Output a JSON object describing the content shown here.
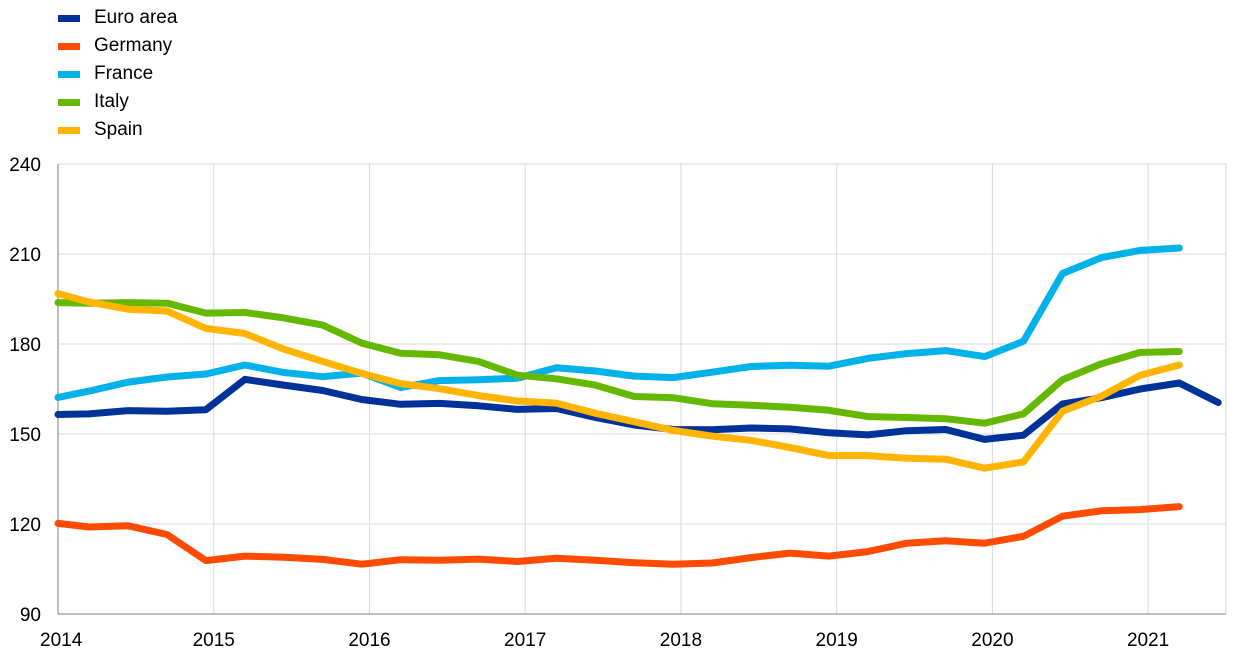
{
  "chart_data": {
    "type": "line",
    "title": "",
    "xlabel": "",
    "ylabel": "",
    "ylim": [
      90,
      240
    ],
    "yticks": [
      90,
      120,
      150,
      180,
      210,
      240
    ],
    "xlim": [
      2014,
      2021.5
    ],
    "xticks": [
      2014,
      2015,
      2016,
      2017,
      2018,
      2019,
      2020,
      2021
    ],
    "xtick_labels": [
      "2014",
      "2015",
      "2016",
      "2017",
      "2018",
      "2019",
      "2020",
      "2021"
    ],
    "legend_position": "top-left",
    "grid": "vertical",
    "series": [
      {
        "name": "Euro area",
        "color": "#003299",
        "x": [
          2014.0,
          2014.2,
          2014.45,
          2014.7,
          2014.95,
          2015.2,
          2015.45,
          2015.7,
          2015.95,
          2016.2,
          2016.45,
          2016.7,
          2016.95,
          2017.2,
          2017.45,
          2017.7,
          2017.95,
          2018.2,
          2018.45,
          2018.7,
          2018.95,
          2019.2,
          2019.45,
          2019.7,
          2019.95,
          2020.2,
          2020.45,
          2020.7,
          2020.95,
          2021.2,
          2021.45
        ],
        "values": [
          156.5,
          156.7,
          157.8,
          157.6,
          158.1,
          168.2,
          166.3,
          164.5,
          161.5,
          159.9,
          160.2,
          159.4,
          158.2,
          158.5,
          155.5,
          153.0,
          151.5,
          151.4,
          152.0,
          151.7,
          150.4,
          149.7,
          151.1,
          151.5,
          148.2,
          149.6,
          160.0,
          162.1,
          165.0,
          167.0,
          160.5
        ]
      },
      {
        "name": "Germany",
        "color": "#ff4b00",
        "x": [
          2014.0,
          2014.2,
          2014.45,
          2014.7,
          2014.95,
          2015.2,
          2015.45,
          2015.7,
          2015.95,
          2016.2,
          2016.45,
          2016.7,
          2016.95,
          2017.2,
          2017.45,
          2017.7,
          2017.95,
          2018.2,
          2018.45,
          2018.7,
          2018.95,
          2019.2,
          2019.45,
          2019.7,
          2019.95,
          2020.2,
          2020.45,
          2020.7,
          2020.95,
          2021.2
        ],
        "values": [
          120.2,
          119.0,
          119.4,
          116.5,
          107.8,
          109.3,
          108.9,
          108.2,
          106.6,
          108.1,
          107.9,
          108.3,
          107.5,
          108.6,
          107.9,
          107.1,
          106.6,
          107.0,
          108.8,
          110.3,
          109.3,
          110.8,
          113.6,
          114.4,
          113.6,
          115.9,
          122.6,
          124.4,
          124.8,
          125.8
        ]
      },
      {
        "name": "France",
        "color": "#00b1ea",
        "x": [
          2014.0,
          2014.2,
          2014.45,
          2014.7,
          2014.95,
          2015.2,
          2015.45,
          2015.7,
          2015.95,
          2016.2,
          2016.45,
          2016.7,
          2016.95,
          2017.2,
          2017.45,
          2017.7,
          2017.95,
          2018.2,
          2018.45,
          2018.7,
          2018.95,
          2019.2,
          2019.45,
          2019.7,
          2019.95,
          2020.2,
          2020.45,
          2020.7,
          2020.95,
          2021.2
        ],
        "values": [
          162.2,
          164.3,
          167.3,
          169.0,
          170.0,
          173.0,
          170.5,
          169.1,
          170.3,
          165.5,
          167.8,
          168.1,
          168.6,
          172.1,
          171.0,
          169.3,
          168.8,
          170.6,
          172.5,
          172.9,
          172.6,
          175.2,
          176.8,
          177.8,
          175.8,
          180.9,
          203.5,
          208.8,
          211.2,
          212.0
        ]
      },
      {
        "name": "Italy",
        "color": "#65b800",
        "x": [
          2014.0,
          2014.2,
          2014.45,
          2014.7,
          2014.95,
          2015.2,
          2015.45,
          2015.7,
          2015.95,
          2016.2,
          2016.45,
          2016.7,
          2016.95,
          2017.2,
          2017.45,
          2017.7,
          2017.95,
          2018.2,
          2018.45,
          2018.7,
          2018.95,
          2019.2,
          2019.45,
          2019.7,
          2019.95,
          2020.2,
          2020.45,
          2020.7,
          2020.95,
          2021.2
        ],
        "values": [
          193.8,
          193.6,
          193.8,
          193.6,
          190.3,
          190.5,
          188.7,
          186.3,
          180.3,
          176.9,
          176.4,
          174.2,
          169.6,
          168.4,
          166.3,
          162.5,
          162.1,
          160.1,
          159.6,
          158.9,
          157.9,
          155.8,
          155.5,
          155.1,
          153.6,
          156.7,
          168.1,
          173.4,
          177.2,
          177.5
        ]
      },
      {
        "name": "Spain",
        "color": "#ffb400",
        "x": [
          2014.0,
          2014.2,
          2014.45,
          2014.7,
          2014.95,
          2015.2,
          2015.45,
          2015.7,
          2015.95,
          2016.2,
          2016.45,
          2016.7,
          2016.95,
          2017.2,
          2017.45,
          2017.7,
          2017.95,
          2018.2,
          2018.45,
          2018.7,
          2018.95,
          2019.2,
          2019.45,
          2019.7,
          2019.95,
          2020.2,
          2020.45,
          2020.7,
          2020.95,
          2021.2
        ],
        "values": [
          196.8,
          194.0,
          191.6,
          191.0,
          185.2,
          183.5,
          178.3,
          174.2,
          170.2,
          166.8,
          165.1,
          162.8,
          161.0,
          160.3,
          156.9,
          154.1,
          151.2,
          149.3,
          147.9,
          145.5,
          142.8,
          142.8,
          141.9,
          141.6,
          138.6,
          140.7,
          157.6,
          162.6,
          169.6,
          173.0
        ]
      }
    ]
  }
}
